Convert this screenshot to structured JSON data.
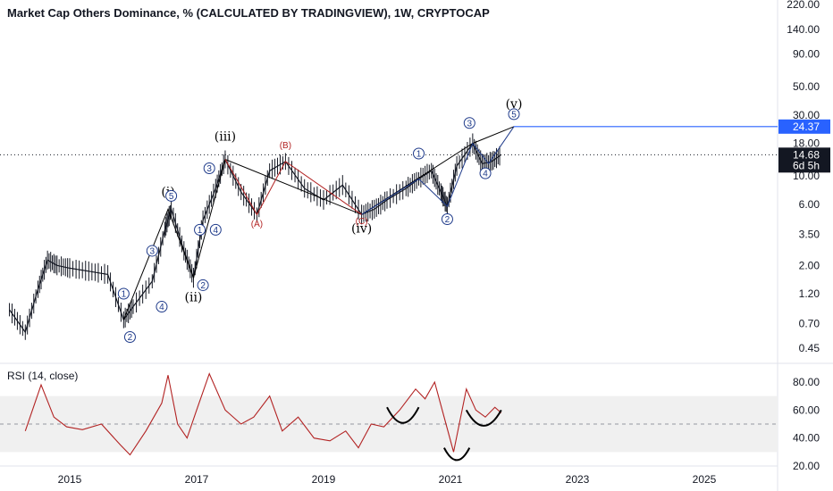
{
  "chart_data": [
    {
      "type": "line",
      "title": "Market Cap Others Dominance, % (CALCULATED BY TRADINGVIEW), 1W, CRYPTOCAP",
      "y_scale": "log",
      "y_ticks": [
        0.45,
        0.7,
        1.2,
        2.0,
        3.5,
        6.0,
        10.0,
        18.0,
        30.0,
        50.0,
        90.0,
        140.0,
        220.0
      ],
      "y_tick_labels": [
        "0.45",
        "0.70",
        "1.20",
        "2.00",
        "3.50",
        "6.00",
        "10.00",
        "18.00",
        "30.00",
        "50.00",
        "90.00",
        "140.00",
        "220.00"
      ],
      "x_ticks": [
        "2015",
        "2017",
        "2019",
        "2021",
        "2023",
        "2025"
      ],
      "x": [
        2014.05,
        2014.3,
        2014.5,
        2014.65,
        2014.8,
        2015.0,
        2015.3,
        2015.6,
        2015.85,
        2016.0,
        2016.3,
        2016.5,
        2016.6,
        2016.8,
        2016.95,
        2017.1,
        2017.3,
        2017.45,
        2017.7,
        2017.95,
        2018.15,
        2018.4,
        2018.7,
        2019.0,
        2019.3,
        2019.6,
        2019.8,
        2020.0,
        2020.3,
        2020.5,
        2020.7,
        2020.85,
        2020.95,
        2021.1,
        2021.35,
        2021.5,
        2021.65,
        2021.8
      ],
      "y": [
        0.9,
        0.6,
        1.3,
        2.2,
        2.0,
        1.9,
        1.8,
        1.7,
        0.75,
        0.95,
        1.5,
        3.8,
        5.5,
        2.6,
        1.6,
        4.5,
        8.0,
        13.5,
        7.5,
        5.0,
        11.0,
        13.0,
        8.0,
        6.5,
        8.5,
        5.0,
        5.5,
        6.5,
        8.0,
        9.5,
        11.0,
        7.5,
        5.8,
        12.0,
        18.0,
        12.5,
        13.0,
        14.68
      ],
      "current_value_label": "14.68",
      "countdown_label": "6d 5h",
      "target_value_label": "24.37",
      "target_value": 24.37,
      "wave_labels": {
        "major": [
          "(iii)",
          "(i)",
          "(ii)",
          "(iv)",
          "(v)"
        ],
        "abc": [
          "(B)",
          "(A)",
          "(C)"
        ],
        "minor_circles": [
          "1",
          "2",
          "3",
          "4",
          "5",
          "1",
          "2",
          "3",
          "4",
          "1",
          "2",
          "3",
          "4",
          "5"
        ]
      }
    },
    {
      "type": "line",
      "title": "RSI (14, close)",
      "y_ticks": [
        20,
        40,
        60,
        80
      ],
      "y_tick_labels": [
        "20.00",
        "40.00",
        "60.00",
        "80.00"
      ],
      "band": [
        30,
        70
      ],
      "midline": 50,
      "x": [
        2014.3,
        2014.55,
        2014.75,
        2014.95,
        2015.2,
        2015.5,
        2015.8,
        2015.95,
        2016.2,
        2016.45,
        2016.55,
        2016.7,
        2016.85,
        2017.0,
        2017.2,
        2017.45,
        2017.7,
        2017.9,
        2018.15,
        2018.35,
        2018.6,
        2018.85,
        2019.1,
        2019.35,
        2019.55,
        2019.75,
        2019.95,
        2020.2,
        2020.45,
        2020.6,
        2020.75,
        2020.9,
        2021.05,
        2021.25,
        2021.4,
        2021.55,
        2021.7,
        2021.8
      ],
      "y": [
        45,
        78,
        55,
        48,
        46,
        50,
        35,
        28,
        45,
        65,
        85,
        50,
        40,
        60,
        86,
        60,
        50,
        55,
        70,
        45,
        55,
        40,
        38,
        45,
        33,
        50,
        48,
        60,
        75,
        68,
        80,
        55,
        30,
        75,
        60,
        55,
        62,
        58
      ],
      "series": [
        {
          "name": "RSI (14, close)",
          "color": "#b22222"
        }
      ]
    }
  ],
  "colors": {
    "price": "#131722",
    "wave": "#1e3a8a",
    "abc": "#b22222",
    "target_tag": "#2962ff",
    "current_tag": "#131722"
  }
}
